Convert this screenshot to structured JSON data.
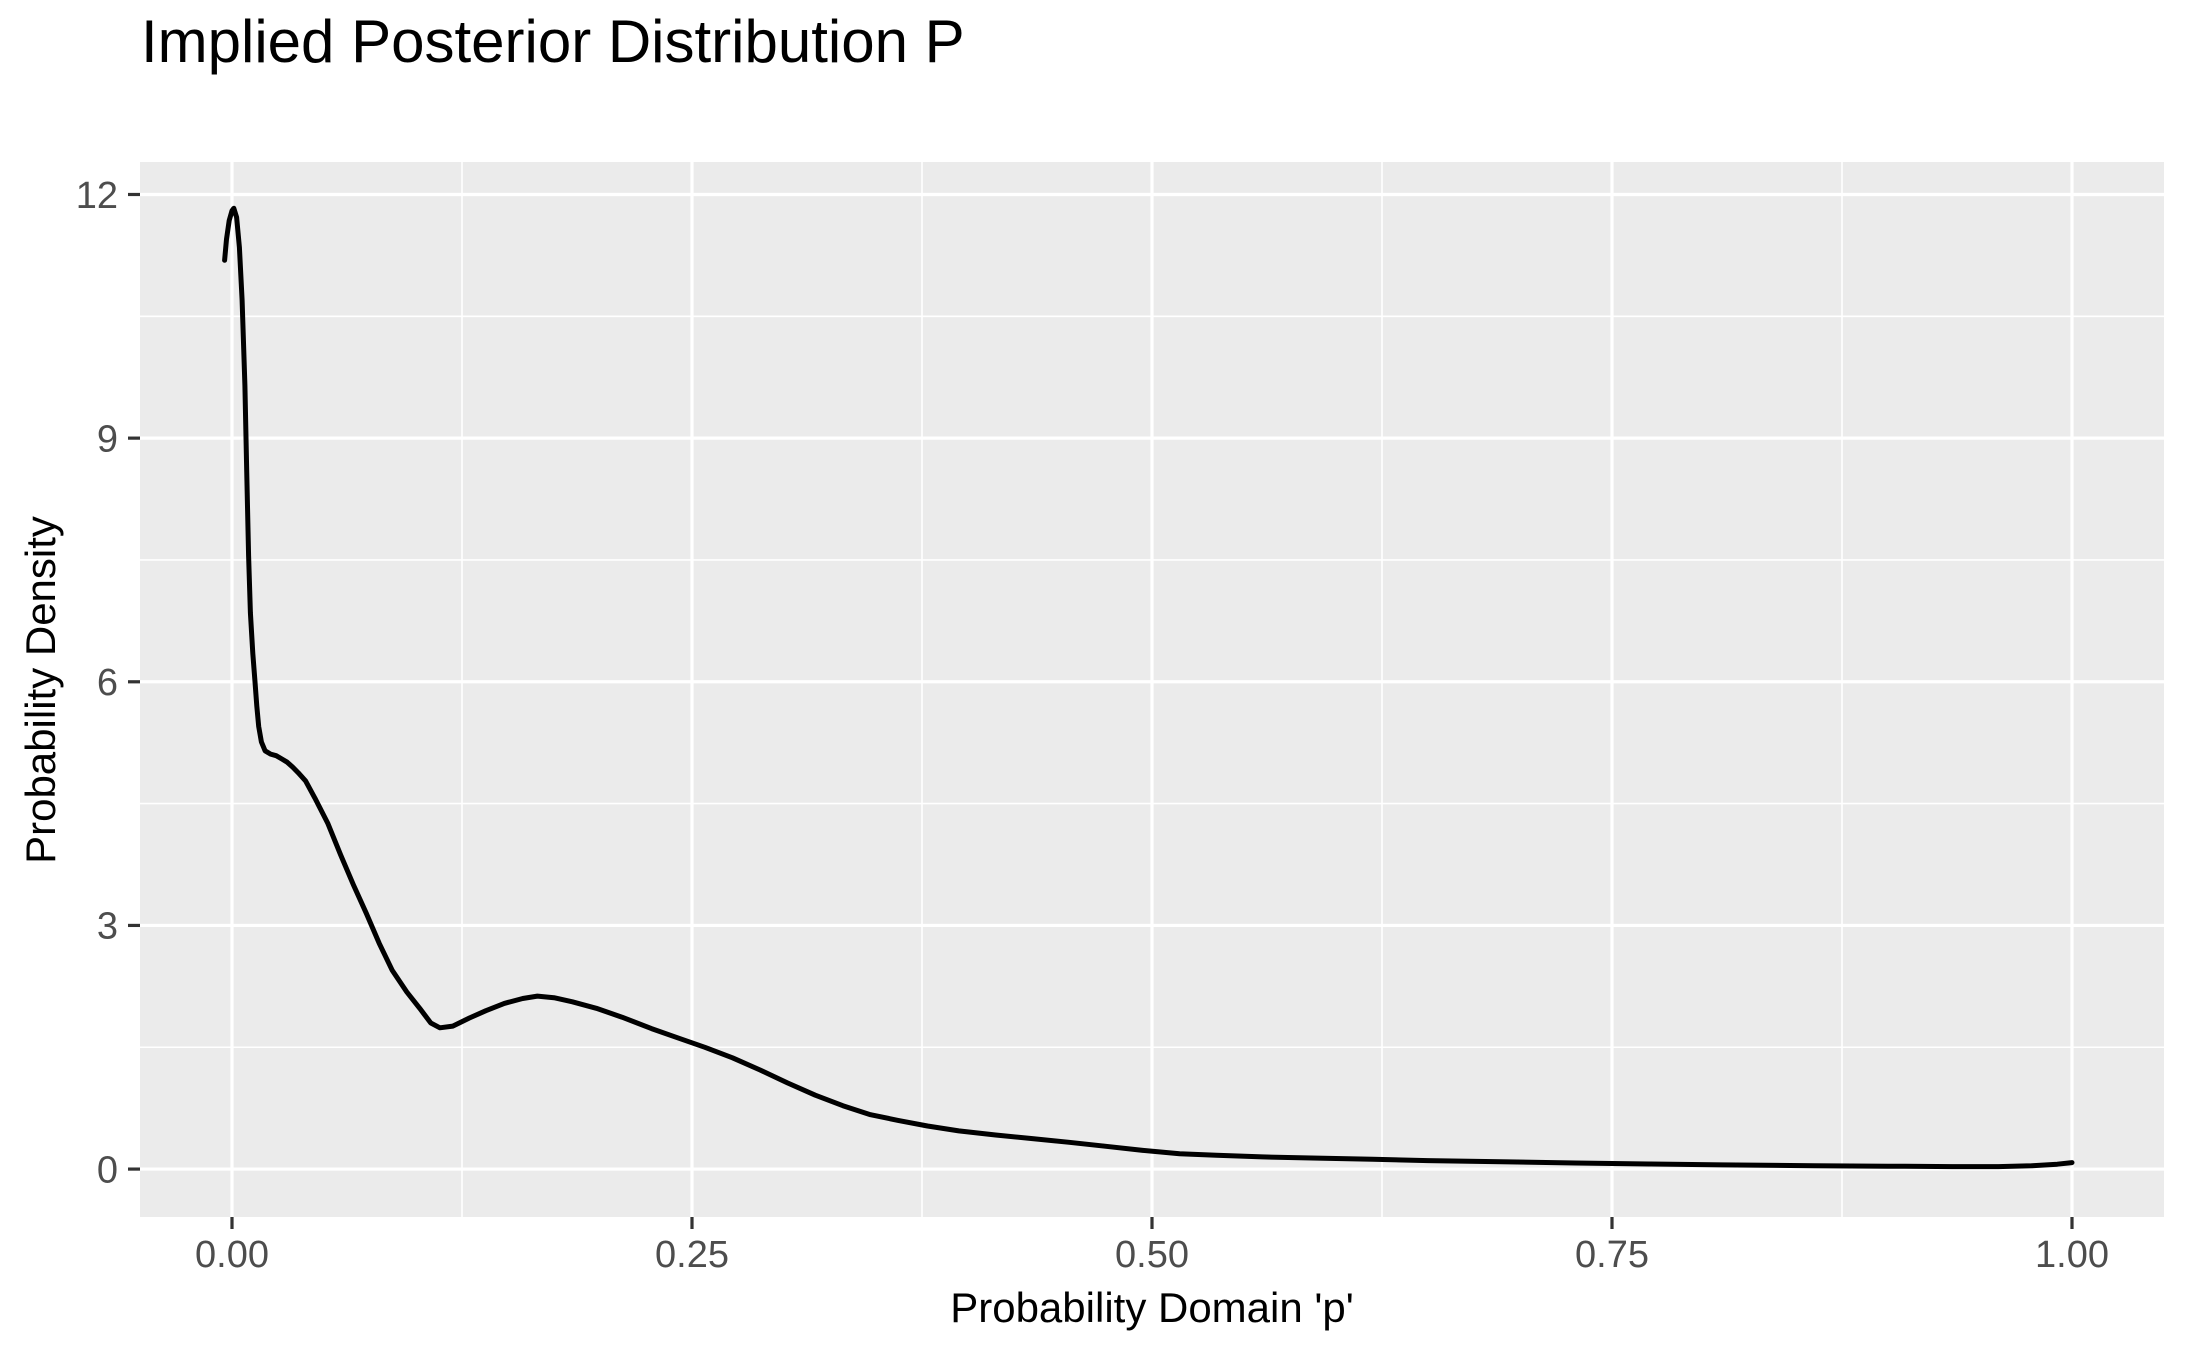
{
  "title": "Implied Posterior Distribution P",
  "chart_data": {
    "type": "line",
    "title": "Implied Posterior Distribution P",
    "xlabel": "Probability Domain 'p'",
    "ylabel": "Probability Density",
    "legend_position": "none",
    "grid": "major+minor",
    "xlim": [
      -0.05,
      1.05
    ],
    "ylim": [
      -0.59,
      12.4
    ],
    "x_tick_values": [
      0,
      0.25,
      0.5,
      0.75,
      1.0
    ],
    "x_tick_labels": [
      "0.00",
      "0.25",
      "0.50",
      "0.75",
      "1.00"
    ],
    "y_tick_values": [
      0,
      3,
      6,
      9,
      12
    ],
    "y_tick_labels": [
      "0",
      "3",
      "6",
      "9",
      "12"
    ],
    "x_minor_values": [
      0.125,
      0.375,
      0.625,
      0.875
    ],
    "y_minor_values": [
      1.5,
      4.5,
      7.5,
      10.5
    ],
    "colors": {
      "background": "#FFFFFF",
      "panel_background": "#EBEBEB",
      "grid": "#FFFFFF",
      "line": "#000000",
      "axis_text": "#4D4D4D",
      "tick_mark": "#333333",
      "title_text": "#000000"
    },
    "series": [
      {
        "name": "posterior_density",
        "color": "#000000",
        "x": [
          -0.004,
          -0.003,
          -0.0015,
          0.0,
          0.001,
          0.0025,
          0.004,
          0.0055,
          0.007,
          0.008,
          0.009,
          0.01,
          0.0113,
          0.0125,
          0.0135,
          0.0145,
          0.016,
          0.018,
          0.021,
          0.024,
          0.027,
          0.03,
          0.033,
          0.036,
          0.04,
          0.045,
          0.052,
          0.059,
          0.066,
          0.073,
          0.08,
          0.087,
          0.095,
          0.102,
          0.108,
          0.113,
          0.12,
          0.129,
          0.138,
          0.148,
          0.158,
          0.166,
          0.175,
          0.185,
          0.198,
          0.212,
          0.228,
          0.243,
          0.257,
          0.272,
          0.287,
          0.302,
          0.317,
          0.332,
          0.347,
          0.362,
          0.378,
          0.395,
          0.415,
          0.435,
          0.455,
          0.475,
          0.495,
          0.515,
          0.535,
          0.56,
          0.59,
          0.62,
          0.65,
          0.69,
          0.73,
          0.77,
          0.81,
          0.86,
          0.9,
          0.935,
          0.96,
          0.978,
          0.992,
          1.0
        ],
        "y": [
          11.19,
          11.45,
          11.68,
          11.8,
          11.83,
          11.72,
          11.35,
          10.7,
          9.65,
          8.6,
          7.55,
          6.85,
          6.35,
          6.0,
          5.7,
          5.45,
          5.26,
          5.15,
          5.11,
          5.09,
          5.05,
          5.01,
          4.95,
          4.88,
          4.78,
          4.57,
          4.26,
          3.87,
          3.5,
          3.15,
          2.78,
          2.45,
          2.18,
          1.98,
          1.8,
          1.74,
          1.76,
          1.86,
          1.95,
          2.04,
          2.1,
          2.13,
          2.11,
          2.06,
          1.98,
          1.87,
          1.73,
          1.61,
          1.5,
          1.37,
          1.22,
          1.06,
          0.91,
          0.78,
          0.67,
          0.6,
          0.53,
          0.47,
          0.42,
          0.375,
          0.33,
          0.28,
          0.23,
          0.19,
          0.17,
          0.15,
          0.135,
          0.12,
          0.105,
          0.09,
          0.075,
          0.062,
          0.052,
          0.042,
          0.035,
          0.03,
          0.03,
          0.04,
          0.06,
          0.08
        ]
      }
    ]
  }
}
